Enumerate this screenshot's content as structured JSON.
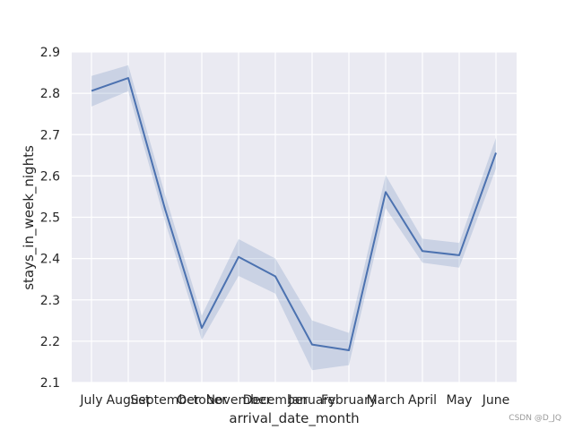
{
  "chart_data": {
    "type": "line",
    "xlabel": "arrival_date_month",
    "ylabel": "stays_in_week_nights",
    "categories": [
      "July",
      "August",
      "September",
      "October",
      "November",
      "December",
      "January",
      "February",
      "March",
      "April",
      "May",
      "June"
    ],
    "series": [
      {
        "values": [
          2.806,
          2.837,
          2.52,
          2.232,
          2.404,
          2.357,
          2.192,
          2.178,
          2.561,
          2.418,
          2.408,
          2.656
        ],
        "ci_lower": [
          2.768,
          2.805,
          2.49,
          2.203,
          2.358,
          2.315,
          2.13,
          2.142,
          2.522,
          2.39,
          2.378,
          2.618
        ],
        "ci_upper": [
          2.842,
          2.868,
          2.555,
          2.262,
          2.447,
          2.4,
          2.25,
          2.22,
          2.602,
          2.448,
          2.438,
          2.692
        ],
        "color": "#4c72b0"
      }
    ],
    "ylim": [
      2.1,
      2.9
    ],
    "yticks": [
      2.1,
      2.2,
      2.3,
      2.4,
      2.5,
      2.6,
      2.7,
      2.8,
      2.9
    ],
    "grid": true,
    "background": "#eaeaf2"
  },
  "watermark": "CSDN @D_JQ"
}
